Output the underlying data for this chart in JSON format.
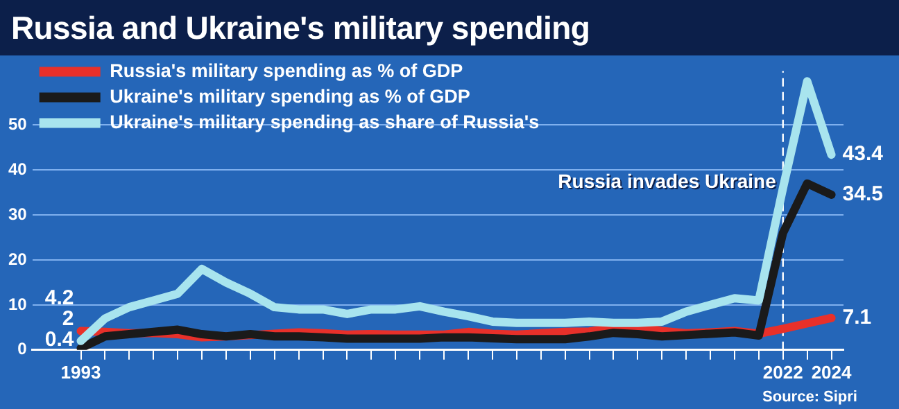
{
  "chart_data": {
    "type": "line",
    "title": "Russia and Ukraine's military spending",
    "x": [
      1993,
      1994,
      1995,
      1996,
      1997,
      1998,
      1999,
      2000,
      2001,
      2002,
      2003,
      2004,
      2005,
      2006,
      2007,
      2008,
      2009,
      2010,
      2011,
      2012,
      2013,
      2014,
      2015,
      2016,
      2017,
      2018,
      2019,
      2020,
      2021,
      2022,
      2023,
      2024
    ],
    "series": [
      {
        "name": "Russia's military spending as % of GDP",
        "color": "#e8302a",
        "values": [
          4.2,
          4,
          3.7,
          3.8,
          3.5,
          2.8,
          3,
          3.3,
          3.6,
          3.9,
          3.7,
          3.4,
          3.5,
          3.4,
          3.4,
          3.4,
          4,
          3.6,
          3.4,
          3.7,
          4,
          4.1,
          4.9,
          5.4,
          4.2,
          3.7,
          3.9,
          4.2,
          3.6,
          4.7,
          5.9,
          7.1
        ],
        "value_labels": [
          "4.2",
          null,
          null,
          null,
          null,
          null,
          null,
          null,
          null,
          null,
          null,
          null,
          null,
          null,
          null,
          null,
          null,
          null,
          null,
          null,
          null,
          null,
          null,
          null,
          null,
          null,
          null,
          null,
          null,
          null,
          null,
          "7.1"
        ]
      },
      {
        "name": "Ukraine's military spending as % of GDP",
        "color": "#1a1a1a",
        "values": [
          0.4,
          3,
          3.5,
          4,
          4.5,
          3.5,
          3,
          3.5,
          3,
          3,
          2.8,
          2.5,
          2.5,
          2.5,
          2.5,
          2.8,
          2.8,
          2.6,
          2.4,
          2.4,
          2.4,
          3,
          3.8,
          3.5,
          3,
          3.3,
          3.6,
          3.9,
          3.2,
          26,
          37,
          34.5
        ],
        "value_labels": [
          "0.4",
          null,
          null,
          null,
          null,
          null,
          null,
          null,
          null,
          null,
          null,
          null,
          null,
          null,
          null,
          null,
          null,
          null,
          null,
          null,
          null,
          null,
          null,
          null,
          null,
          null,
          null,
          null,
          null,
          null,
          null,
          "34.5"
        ]
      },
      {
        "name": "Ukraine's military spending as share of Russia's",
        "color": "#a8e4ee",
        "values": [
          2,
          7,
          9.5,
          11,
          12.5,
          18,
          15,
          12.5,
          9.5,
          9,
          9,
          8,
          9,
          9,
          9.7,
          8.5,
          7.5,
          6.3,
          6,
          6,
          6,
          6.3,
          6,
          6,
          6.3,
          8.5,
          10,
          11.5,
          11,
          36,
          59.7,
          43.4
        ],
        "value_labels": [
          "2",
          null,
          null,
          null,
          null,
          null,
          null,
          null,
          null,
          null,
          null,
          null,
          null,
          null,
          null,
          null,
          null,
          null,
          null,
          null,
          null,
          null,
          null,
          null,
          null,
          null,
          null,
          null,
          null,
          null,
          null,
          "43.4"
        ]
      }
    ],
    "xlim": [
      1991,
      2024.5
    ],
    "xticks": [
      {
        "value": 1993,
        "label": "1993"
      },
      {
        "value": 1994,
        "label": null
      },
      {
        "value": 1995,
        "label": null
      },
      {
        "value": 1996,
        "label": null
      },
      {
        "value": 1997,
        "label": null
      },
      {
        "value": 1998,
        "label": null
      },
      {
        "value": 1999,
        "label": null
      },
      {
        "value": 2000,
        "label": null
      },
      {
        "value": 2001,
        "label": null
      },
      {
        "value": 2002,
        "label": null
      },
      {
        "value": 2003,
        "label": null
      },
      {
        "value": 2004,
        "label": null
      },
      {
        "value": 2005,
        "label": null
      },
      {
        "value": 2006,
        "label": null
      },
      {
        "value": 2007,
        "label": null
      },
      {
        "value": 2008,
        "label": null
      },
      {
        "value": 2009,
        "label": null
      },
      {
        "value": 2010,
        "label": null
      },
      {
        "value": 2011,
        "label": null
      },
      {
        "value": 2012,
        "label": null
      },
      {
        "value": 2013,
        "label": null
      },
      {
        "value": 2014,
        "label": null
      },
      {
        "value": 2015,
        "label": null
      },
      {
        "value": 2016,
        "label": null
      },
      {
        "value": 2017,
        "label": null
      },
      {
        "value": 2018,
        "label": null
      },
      {
        "value": 2019,
        "label": null
      },
      {
        "value": 2020,
        "label": null
      },
      {
        "value": 2021,
        "label": null
      },
      {
        "value": 2022,
        "label": "2022"
      },
      {
        "value": 2023,
        "label": null
      },
      {
        "value": 2024,
        "label": "2024"
      }
    ],
    "ylim": [
      0,
      62
    ],
    "yticks": [
      0,
      10,
      20,
      30,
      40,
      50
    ],
    "grid": "y",
    "legend": "top left",
    "marker": "none",
    "line_style": "solid",
    "ref_lines": [
      {
        "axis": "x",
        "value": 2022,
        "label": "Russia invades Ukraine",
        "color": "#ffffff",
        "line_style": "dashed"
      }
    ],
    "annotations": [
      "Source: Sipri"
    ]
  }
}
